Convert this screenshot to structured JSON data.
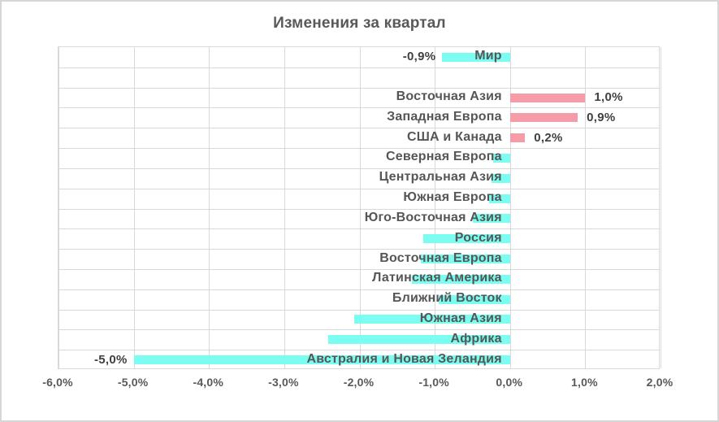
{
  "chart_data": {
    "type": "bar",
    "orientation": "horizontal",
    "title": "Изменения за квартал",
    "x_axis": {
      "min": -6.0,
      "max": 2.0,
      "step": 1.0,
      "tick_labels": [
        "-6,0%",
        "-5,0%",
        "-4,0%",
        "-3,0%",
        "-2,0%",
        "-1,0%",
        "0,0%",
        "1,0%",
        "2,0%"
      ],
      "grid": true
    },
    "colors": {
      "negative_bar": "#7BFDF1",
      "positive_bar": "#F59CA8",
      "gridline": "#D9D9D9",
      "title_text": "#595959",
      "category_text": "#565656",
      "data_label_text": "#404040"
    },
    "rows": [
      {
        "category": "Мир",
        "value": -0.9,
        "data_label": "-0,9%"
      },
      {
        "category": "",
        "value": null
      },
      {
        "category": "Восточная Азия",
        "value": 1.0,
        "data_label": "1,0%"
      },
      {
        "category": "Западная Европа",
        "value": 0.9,
        "data_label": "0,9%"
      },
      {
        "category": "США и Канада",
        "value": 0.2,
        "data_label": "0,2%"
      },
      {
        "category": "Северная Европа",
        "value": -0.22
      },
      {
        "category": "Центральная Азия",
        "value": -0.25
      },
      {
        "category": "Южная Европа",
        "value": -0.28
      },
      {
        "category": "Юго-Восточная Азия",
        "value": -0.49
      },
      {
        "category": "Россия",
        "value": -1.15
      },
      {
        "category": "Восточная Европа",
        "value": -1.19
      },
      {
        "category": "Латинская Америка",
        "value": -1.3
      },
      {
        "category": "Ближний Восток",
        "value": -0.95
      },
      {
        "category": "Южная Азия",
        "value": -2.07
      },
      {
        "category": "Африка",
        "value": -2.42
      },
      {
        "category": "Австралия и Новая Зеландия",
        "value": -5.0,
        "data_label": "-5,0%"
      }
    ]
  }
}
